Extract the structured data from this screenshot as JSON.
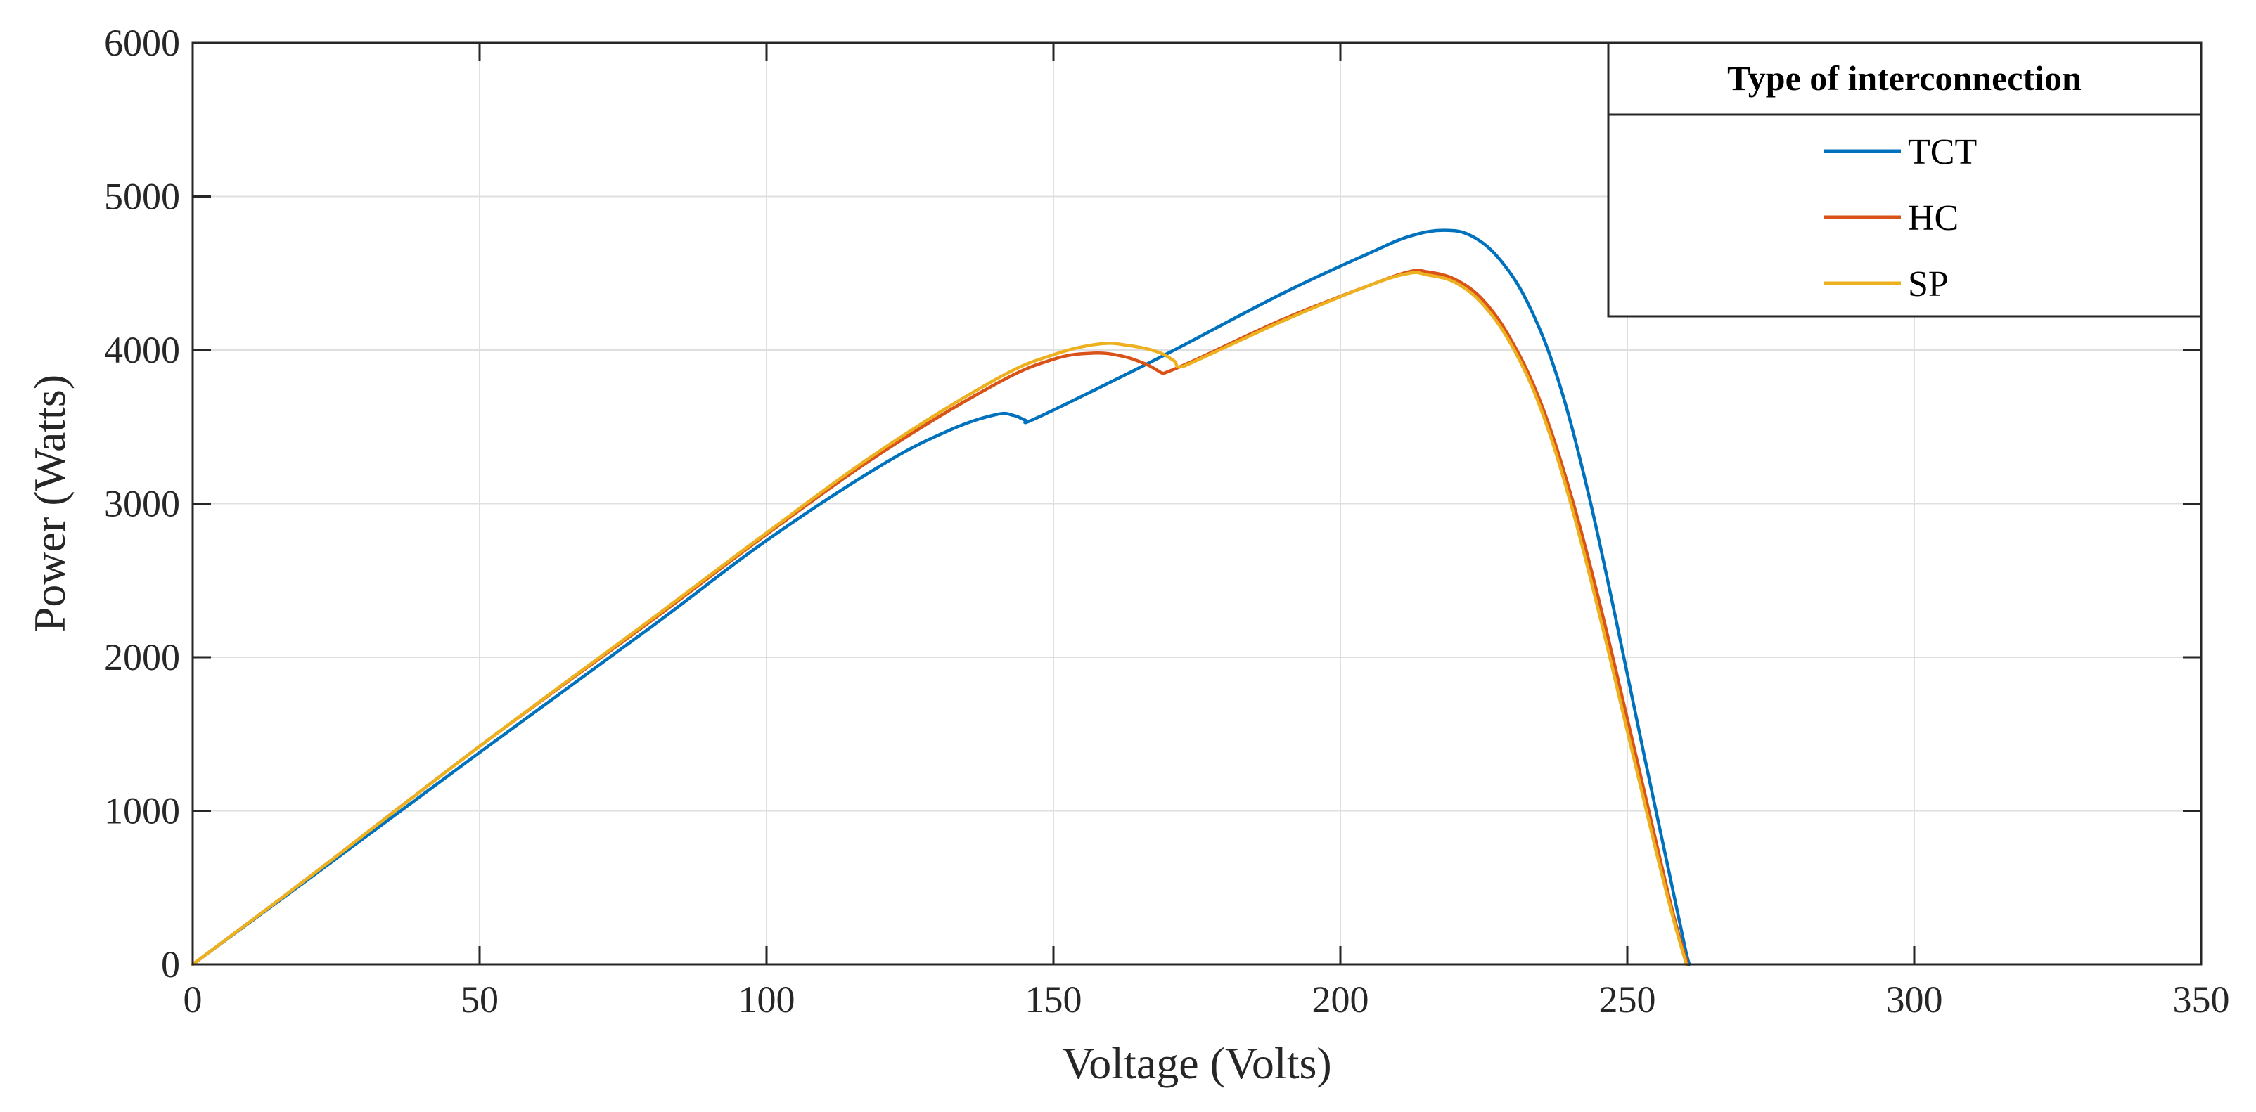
{
  "chart_data": {
    "type": "line",
    "title": "",
    "xlabel": "Voltage (Volts)",
    "ylabel": "Power (Watts)",
    "xlim": [
      0,
      350
    ],
    "ylim": [
      0,
      6000
    ],
    "xticks": [
      0,
      50,
      100,
      150,
      200,
      250,
      300,
      350
    ],
    "yticks": [
      0,
      1000,
      2000,
      3000,
      4000,
      5000,
      6000
    ],
    "x_tick_labels": [
      "0",
      "50",
      "100",
      "150",
      "200",
      "250",
      "300",
      "350"
    ],
    "y_tick_labels": [
      "0",
      "1000",
      "2000",
      "3000",
      "4000",
      "5000",
      "6000"
    ],
    "grid": true,
    "legend": {
      "title": "Type of interconnection",
      "position": "top-right"
    },
    "series": [
      {
        "name": "TCT",
        "color": "#0072BD",
        "points": [
          [
            0,
            0
          ],
          [
            20,
            550
          ],
          [
            50,
            1380
          ],
          [
            80,
            2200
          ],
          [
            100,
            2760
          ],
          [
            120,
            3250
          ],
          [
            132,
            3480
          ],
          [
            140,
            3580
          ],
          [
            143,
            3575
          ],
          [
            145,
            3545
          ],
          [
            146,
            3540
          ],
          [
            155,
            3700
          ],
          [
            170,
            3980
          ],
          [
            190,
            4370
          ],
          [
            205,
            4630
          ],
          [
            212,
            4740
          ],
          [
            218,
            4780
          ],
          [
            223,
            4740
          ],
          [
            228,
            4580
          ],
          [
            233,
            4280
          ],
          [
            238,
            3800
          ],
          [
            243,
            3100
          ],
          [
            248,
            2250
          ],
          [
            253,
            1350
          ],
          [
            257,
            650
          ],
          [
            260,
            120
          ],
          [
            260.8,
            0
          ]
        ]
      },
      {
        "name": "HC",
        "color": "#D95319",
        "points": [
          [
            0,
            0
          ],
          [
            20,
            560
          ],
          [
            50,
            1420
          ],
          [
            80,
            2240
          ],
          [
            100,
            2800
          ],
          [
            120,
            3330
          ],
          [
            140,
            3780
          ],
          [
            150,
            3940
          ],
          [
            157,
            3980
          ],
          [
            162,
            3960
          ],
          [
            166,
            3910
          ],
          [
            168,
            3870
          ],
          [
            169,
            3850
          ],
          [
            170,
            3860
          ],
          [
            175,
            3940
          ],
          [
            190,
            4200
          ],
          [
            205,
            4420
          ],
          [
            212,
            4510
          ],
          [
            215,
            4510
          ],
          [
            220,
            4460
          ],
          [
            225,
            4320
          ],
          [
            230,
            4050
          ],
          [
            235,
            3650
          ],
          [
            240,
            3080
          ],
          [
            245,
            2380
          ],
          [
            250,
            1600
          ],
          [
            255,
            800
          ],
          [
            258,
            330
          ],
          [
            260.5,
            0
          ]
        ]
      },
      {
        "name": "SP",
        "color": "#EDB120",
        "points": [
          [
            0,
            0
          ],
          [
            20,
            560
          ],
          [
            50,
            1420
          ],
          [
            80,
            2250
          ],
          [
            100,
            2810
          ],
          [
            120,
            3350
          ],
          [
            140,
            3810
          ],
          [
            150,
            3970
          ],
          [
            158,
            4040
          ],
          [
            163,
            4030
          ],
          [
            168,
            3990
          ],
          [
            171,
            3930
          ],
          [
            172,
            3890
          ],
          [
            176,
            3950
          ],
          [
            190,
            4190
          ],
          [
            205,
            4420
          ],
          [
            212,
            4500
          ],
          [
            215,
            4490
          ],
          [
            220,
            4440
          ],
          [
            225,
            4290
          ],
          [
            230,
            4020
          ],
          [
            235,
            3610
          ],
          [
            240,
            3020
          ],
          [
            245,
            2300
          ],
          [
            250,
            1520
          ],
          [
            255,
            740
          ],
          [
            258,
            300
          ],
          [
            260.3,
            0
          ]
        ]
      }
    ]
  }
}
